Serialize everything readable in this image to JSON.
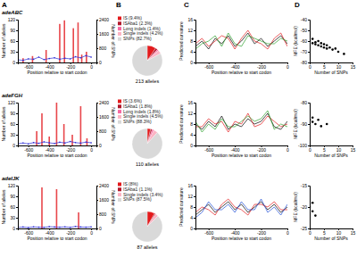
{
  "panel_labels": [
    "A",
    "B",
    "C",
    "D"
  ],
  "chart_data": [
    {
      "type": "bar",
      "title": "adeABC",
      "xlabel": "Position relative to start codon",
      "ylabel": "Number of alleles",
      "y2label": "Number of SNPs",
      "xlim": [
        -700,
        50
      ],
      "xticks": [
        -600,
        -400,
        -200,
        0
      ],
      "ylim": [
        0,
        120
      ],
      "yticks": [
        0,
        30,
        60,
        90,
        120
      ],
      "y2lim": [
        0,
        2400
      ],
      "y2ticks": [
        0,
        800,
        1600,
        2400
      ],
      "series": [
        {
          "type": "bar",
          "color": "#e8474b",
          "x": [
            -650,
            -560,
            -430,
            -300,
            -255,
            -170,
            -125,
            -90,
            -45
          ],
          "values": [
            12,
            18,
            35,
            108,
            118,
            96,
            112,
            22,
            30
          ]
        },
        {
          "type": "line",
          "axis": "y2",
          "color": "#2b2bd6",
          "marker": "circle",
          "x": [
            -700,
            -650,
            -600,
            -550,
            -500,
            -450,
            -400,
            -350,
            -300,
            -250,
            -200,
            -150,
            -100,
            -50,
            0
          ],
          "values": [
            150,
            120,
            200,
            180,
            300,
            160,
            220,
            260,
            180,
            240,
            200,
            320,
            260,
            380,
            300
          ]
        }
      ]
    },
    {
      "type": "pie",
      "title": "213 alleles",
      "categories": [
        "IS (9.4%)",
        "ISAba1 (2.3%)",
        "Long indels (1.4%)",
        "Single indels (4.2%)",
        "SNPs (82.7%)"
      ],
      "values": [
        9.4,
        2.3,
        1.4,
        4.2,
        82.7
      ],
      "colors": [
        "#e31a1c",
        "#b2182b",
        "#f768a1",
        "#fbb4c4",
        "#d9d9d9"
      ]
    },
    {
      "type": "line",
      "xlabel": "Position relative to start codon",
      "ylabel": "Predicted curvature",
      "xlim": [
        -700,
        0
      ],
      "xticks": [
        -600,
        -400,
        -200,
        0
      ],
      "ylim": [
        0,
        16
      ],
      "yticks": [
        0,
        4,
        8,
        12,
        16
      ],
      "x": [
        -700,
        -650,
        -600,
        -550,
        -500,
        -450,
        -400,
        -350,
        -300,
        -250,
        -200,
        -150,
        -100,
        -50,
        0
      ],
      "series": [
        {
          "color": "#000000",
          "values": [
            6,
            8,
            5,
            9,
            7,
            10,
            6,
            8,
            11,
            7,
            9,
            6,
            8,
            10,
            7
          ]
        },
        {
          "color": "#e31a1c",
          "values": [
            7,
            9,
            6,
            8,
            10,
            9,
            5,
            9,
            12,
            8,
            7,
            5,
            9,
            11,
            6
          ]
        },
        {
          "color": "#2ca02c",
          "values": [
            5,
            7,
            8,
            10,
            6,
            11,
            7,
            6,
            10,
            9,
            8,
            7,
            7,
            9,
            8
          ]
        }
      ]
    },
    {
      "type": "scatter",
      "xlabel": "Number of SNPs",
      "ylabel": "MFE (kcal/mol)",
      "xlim": [
        0,
        15
      ],
      "xticks": [
        0,
        5,
        10,
        15
      ],
      "ylim": [
        -80,
        -40
      ],
      "yticks": [
        -80,
        -70,
        -60,
        -50,
        -40
      ],
      "series": [
        {
          "color": "#000000",
          "marker": "circle",
          "x": [
            0,
            1,
            1,
            2,
            2,
            3,
            3,
            4,
            4,
            5,
            5,
            6,
            6,
            7,
            8,
            9,
            10,
            12
          ],
          "values": [
            -60,
            -62,
            -58,
            -63,
            -61,
            -64,
            -60,
            -65,
            -62,
            -66,
            -63,
            -67,
            -64,
            -66,
            -68,
            -67,
            -70,
            -72
          ]
        }
      ]
    },
    {
      "type": "bar",
      "title": "adeFGH",
      "xlabel": "Position relative to start codon",
      "ylabel": "Number of alleles",
      "y2label": "Number of SNPs",
      "xlim": [
        -700,
        50
      ],
      "xticks": [
        -600,
        -400,
        -200,
        0
      ],
      "ylim": [
        0,
        120
      ],
      "yticks": [
        0,
        30,
        60,
        90,
        120
      ],
      "y2lim": [
        0,
        2400
      ],
      "y2ticks": [
        0,
        800,
        1600,
        2400
      ],
      "series": [
        {
          "type": "bar",
          "color": "#e8474b",
          "x": [
            -520,
            -470,
            -400,
            -330,
            -260,
            -180,
            -100,
            -40
          ],
          "values": [
            40,
            90,
            25,
            120,
            60,
            30,
            110,
            20
          ]
        },
        {
          "type": "line",
          "axis": "y2",
          "color": "#2b2bd6",
          "marker": "circle",
          "x": [
            -700,
            -650,
            -600,
            -550,
            -500,
            -450,
            -400,
            -350,
            -300,
            -250,
            -200,
            -150,
            -100,
            -50,
            0
          ],
          "values": [
            100,
            140,
            90,
            160,
            120,
            200,
            150,
            110,
            180,
            140,
            220,
            160,
            130,
            190,
            150
          ]
        }
      ]
    },
    {
      "type": "pie",
      "title": "110 alleles",
      "categories": [
        "IS (3.6%)",
        "ISAba1 (1.8%)",
        "Long indels (1.8%)",
        "Single indels (4.5%)",
        "SNPs (88.3%)"
      ],
      "values": [
        3.6,
        1.8,
        1.8,
        4.5,
        88.3
      ],
      "colors": [
        "#e31a1c",
        "#b2182b",
        "#f768a1",
        "#fbb4c4",
        "#d9d9d9"
      ]
    },
    {
      "type": "line",
      "xlabel": "Position relative to start codon",
      "ylabel": "Predicted curvature",
      "xlim": [
        -700,
        0
      ],
      "xticks": [
        -600,
        -400,
        -200,
        0
      ],
      "ylim": [
        0,
        16
      ],
      "yticks": [
        0,
        4,
        8,
        12,
        16
      ],
      "x": [
        -700,
        -650,
        -600,
        -550,
        -500,
        -450,
        -400,
        -350,
        -300,
        -250,
        -200,
        -150,
        -100,
        -50,
        0
      ],
      "series": [
        {
          "color": "#000000",
          "values": [
            8,
            6,
            9,
            7,
            11,
            6,
            8,
            7,
            10,
            8,
            9,
            12,
            7,
            6,
            9
          ]
        },
        {
          "color": "#e31a1c",
          "values": [
            7,
            7,
            10,
            8,
            9,
            5,
            9,
            8,
            12,
            7,
            8,
            11,
            9,
            7,
            8
          ]
        },
        {
          "color": "#2ca02c",
          "values": [
            9,
            5,
            8,
            6,
            10,
            7,
            7,
            9,
            11,
            9,
            10,
            13,
            6,
            8,
            7
          ]
        }
      ]
    },
    {
      "type": "scatter",
      "xlabel": "Number of SNPs",
      "ylabel": "MFE (kcal/mol)",
      "xlim": [
        0,
        15
      ],
      "xticks": [
        0,
        5,
        10,
        15
      ],
      "ylim": [
        -100,
        -80
      ],
      "yticks": [
        -100,
        -90,
        -80
      ],
      "series": [
        {
          "color": "#000000",
          "marker": "circle",
          "x": [
            0,
            1,
            1,
            2,
            3,
            4,
            6
          ],
          "values": [
            -88,
            -89,
            -87,
            -90,
            -88,
            -91,
            -90
          ]
        }
      ]
    },
    {
      "type": "bar",
      "title": "adeIJK",
      "xlabel": "Position relative to start codon",
      "ylabel": "Number of alleles",
      "y2label": "Number of SNPs",
      "xlim": [
        -700,
        50
      ],
      "xticks": [
        -600,
        -400,
        -200,
        0
      ],
      "ylim": [
        0,
        120
      ],
      "yticks": [
        0,
        30,
        60,
        90,
        120
      ],
      "y2lim": [
        0,
        2400
      ],
      "y2ticks": [
        0,
        800,
        1600,
        2400
      ],
      "series": [
        {
          "type": "bar",
          "color": "#e8474b",
          "x": [
            -470,
            -330,
            -120
          ],
          "values": [
            115,
            110,
            45
          ]
        },
        {
          "type": "line",
          "axis": "y2",
          "color": "#2b2bd6",
          "marker": "circle",
          "x": [
            -700,
            -650,
            -600,
            -550,
            -500,
            -450,
            -400,
            -350,
            -300,
            -250,
            -200,
            -150,
            -100,
            -50,
            0
          ],
          "values": [
            60,
            80,
            50,
            90,
            70,
            60,
            100,
            80,
            70,
            90,
            60,
            110,
            80,
            70,
            90
          ]
        }
      ]
    },
    {
      "type": "pie",
      "title": "87 alleles",
      "categories": [
        "IS (8%)",
        "ISAba1 (1.1%)",
        "Single indels (3.4%)",
        "SNPs (87.5%)"
      ],
      "values": [
        8,
        1.1,
        3.4,
        87.5
      ],
      "colors": [
        "#e31a1c",
        "#b2182b",
        "#fbb4c4",
        "#d9d9d9"
      ]
    },
    {
      "type": "line",
      "xlabel": "Position relative to start codon",
      "ylabel": "Predicted curvature",
      "xlim": [
        -700,
        0
      ],
      "xticks": [
        -600,
        -400,
        -200,
        0
      ],
      "ylim": [
        0,
        16
      ],
      "yticks": [
        0,
        4,
        8,
        12,
        16
      ],
      "x": [
        -700,
        -650,
        -600,
        -550,
        -500,
        -450,
        -400,
        -350,
        -300,
        -250,
        -200,
        -150,
        -100,
        -50,
        0
      ],
      "series": [
        {
          "color": "#000000",
          "values": [
            5,
            7,
            9,
            6,
            8,
            10,
            7,
            9,
            6,
            8,
            10,
            7,
            9,
            6,
            8
          ]
        },
        {
          "color": "#e31a1c",
          "values": [
            6,
            8,
            7,
            5,
            9,
            11,
            8,
            7,
            5,
            9,
            9,
            8,
            10,
            7,
            7
          ]
        },
        {
          "color": "#1f4fd6",
          "values": [
            4,
            6,
            10,
            7,
            7,
            9,
            6,
            10,
            7,
            7,
            11,
            6,
            8,
            5,
            9
          ]
        }
      ]
    },
    {
      "type": "scatter",
      "xlabel": "Number of SNPs",
      "ylabel": "MFE (kcal/mol)",
      "xlim": [
        0,
        15
      ],
      "xticks": [
        0,
        5,
        10,
        15
      ],
      "ylim": [
        -25,
        -15
      ],
      "yticks": [
        -25,
        -20,
        -15
      ],
      "series": [
        {
          "color": "#000000",
          "marker": "circle",
          "x": [
            0,
            1,
            1,
            2
          ],
          "values": [
            -20,
            -21,
            -19,
            -22
          ]
        }
      ]
    }
  ]
}
